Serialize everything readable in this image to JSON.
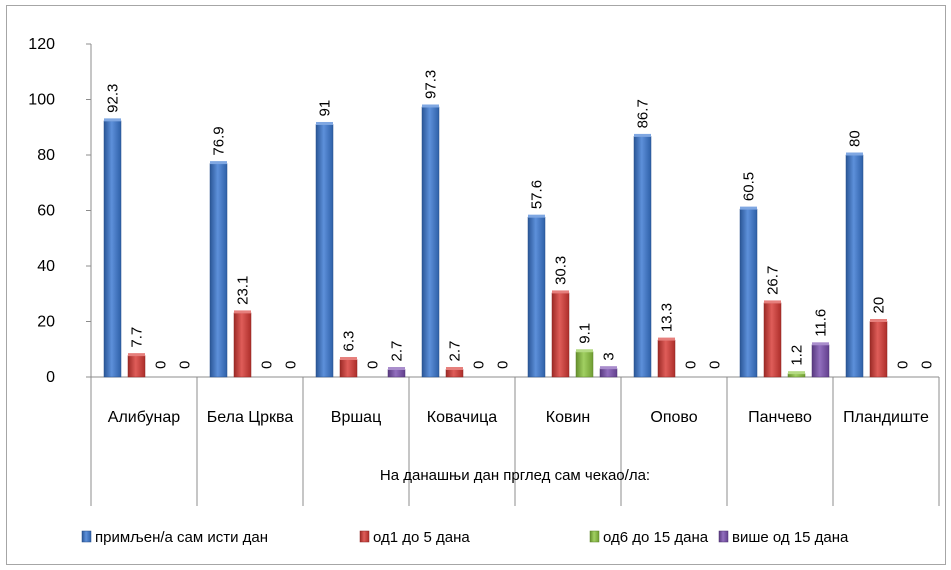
{
  "chart_data": {
    "type": "bar",
    "categories": [
      "Алибунар",
      "Бела Црква",
      "Вршац",
      "Ковачица",
      "Ковин",
      "Опово",
      "Панчево",
      "Пландиште"
    ],
    "series": [
      {
        "name": "примљен/а сам исти дан",
        "values": [
          92.3,
          76.9,
          91,
          97.3,
          57.6,
          86.7,
          60.5,
          80
        ],
        "color": "#3a78d2"
      },
      {
        "name": "од1 до 5 дана",
        "values": [
          7.7,
          23.1,
          6.3,
          2.7,
          30.3,
          13.3,
          26.7,
          20
        ],
        "color": "#d83a35"
      },
      {
        "name": "од6 до 15 дана",
        "values": [
          0,
          0,
          0,
          0,
          9.1,
          0,
          1.2,
          0
        ],
        "color": "#8cc63f"
      },
      {
        "name": "више од 15 дана",
        "values": [
          0,
          0,
          2.7,
          0,
          3,
          0,
          11.6,
          0
        ],
        "color": "#7a4fb0"
      }
    ],
    "data_labels": [
      [
        "92.3",
        "76.9",
        "91",
        "97.3",
        "57.6",
        "86.7",
        "60.5",
        "80"
      ],
      [
        "7.7",
        "23.1",
        "6.3",
        "2.7",
        "30.3",
        "13.3",
        "26.7",
        "20"
      ],
      [
        "0",
        "0",
        "0",
        "0",
        "9.1",
        "0",
        "1.2",
        "0"
      ],
      [
        "0",
        "0",
        "2.7",
        "0",
        "3",
        "0",
        "11.6",
        "0"
      ]
    ],
    "xlabel": "На данашњи дан прглед сам чекао/ла:",
    "ylabel": "",
    "ylim": [
      0,
      120
    ],
    "yticks": [
      0,
      20,
      40,
      60,
      80,
      100,
      120
    ],
    "grid": false,
    "legend_position": "bottom"
  }
}
